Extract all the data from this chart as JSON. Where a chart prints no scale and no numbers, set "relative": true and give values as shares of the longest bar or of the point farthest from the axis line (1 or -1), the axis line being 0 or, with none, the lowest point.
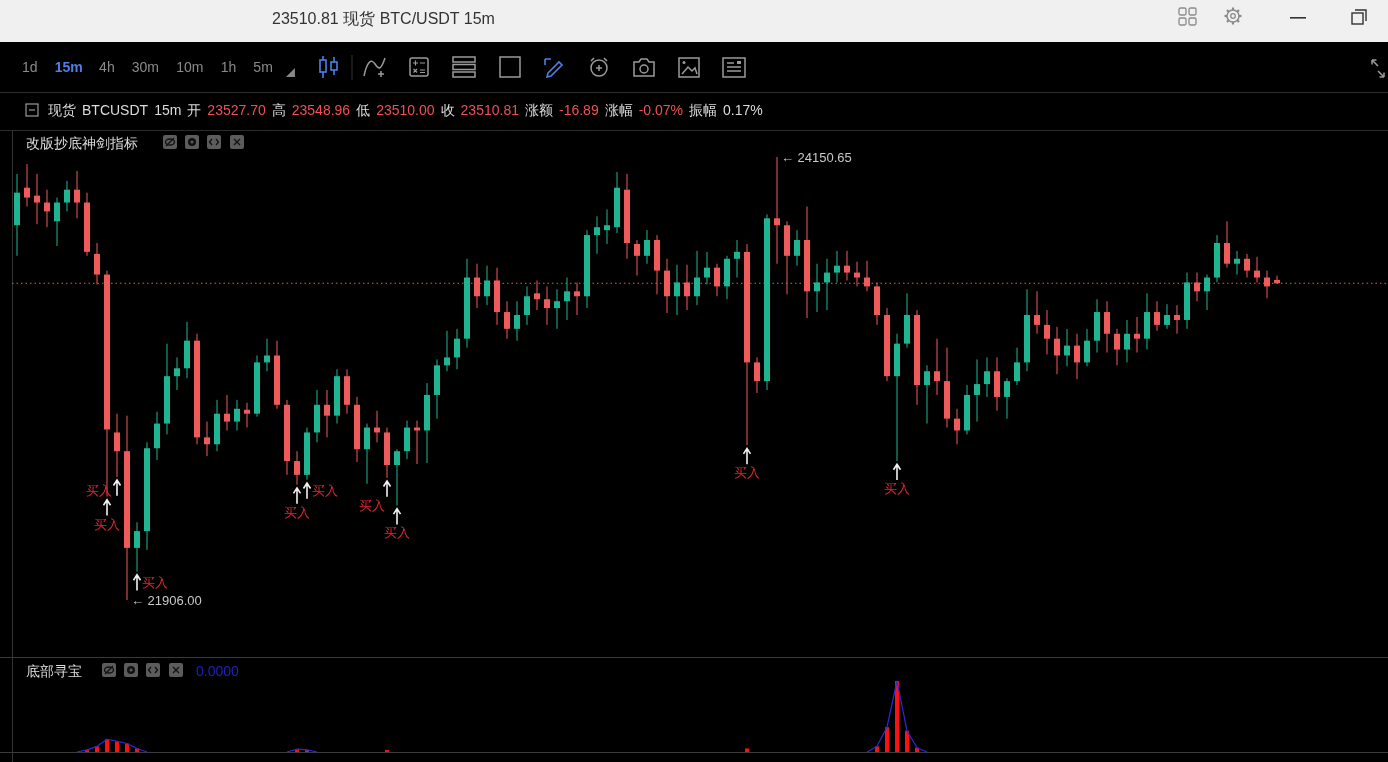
{
  "chart_data": [
    {
      "type": "other",
      "title": "23510.81 现货 BTC/USDT 15m",
      "annotations": [
        "1d",
        "15m",
        "4h",
        "30m",
        "10m",
        "1h",
        "5m"
      ]
    },
    {
      "type": "candlestick",
      "title": "现货 BTCUSDT 15m 开 23527.70 高 23548.96 低 23510.00 收 23510.81 涨额 -16.89 涨幅 -0.07% 振幅 0.17%",
      "subtitle": "改版抄底神剑指标",
      "categories": [
        null,
        null,
        null,
        null,
        null,
        null,
        null,
        null,
        null,
        null,
        null,
        null,
        null,
        null,
        null,
        null,
        null,
        null,
        null,
        null,
        null,
        null,
        null,
        null,
        null,
        null,
        null,
        null,
        null,
        null,
        null,
        null,
        null,
        null,
        null,
        null,
        null,
        null,
        null,
        null,
        null,
        null,
        null,
        null,
        null,
        null,
        null,
        null,
        null,
        null,
        null,
        null,
        null,
        null,
        null,
        null,
        null,
        null,
        null,
        null,
        null,
        null,
        null,
        null,
        null,
        null,
        null,
        null,
        null,
        null,
        null,
        null,
        null,
        null,
        null,
        null,
        null,
        null,
        null,
        null,
        null,
        null,
        null,
        null,
        null,
        null,
        null,
        null,
        null,
        null,
        null,
        null,
        null,
        null,
        null,
        null,
        null,
        null,
        null,
        null,
        null,
        null,
        null,
        null,
        null,
        null,
        null,
        null,
        null,
        null,
        null,
        null,
        null,
        null,
        null,
        null,
        null,
        null,
        null,
        null,
        null,
        null,
        null,
        null,
        null,
        null,
        null
      ],
      "ohlc": [
        [
          23805,
          24065,
          23650,
          23970
        ],
        [
          23995,
          24115,
          23900,
          23945
        ],
        [
          23955,
          24065,
          23810,
          23920
        ],
        [
          23920,
          23985,
          23795,
          23875
        ],
        [
          23825,
          23945,
          23700,
          23920
        ],
        [
          23920,
          24030,
          23875,
          23985
        ],
        [
          23985,
          24080,
          23840,
          23920
        ],
        [
          23920,
          23970,
          23650,
          23670
        ],
        [
          23660,
          23715,
          23505,
          23555
        ],
        [
          23555,
          23575,
          22430,
          22770
        ],
        [
          22755,
          22850,
          22530,
          22660
        ],
        [
          22660,
          22840,
          21906.0,
          22170
        ],
        [
          22170,
          22300,
          22050,
          22255
        ],
        [
          22255,
          22705,
          22160,
          22675
        ],
        [
          22675,
          22860,
          22615,
          22800
        ],
        [
          22800,
          23205,
          22745,
          23040
        ],
        [
          23040,
          23135,
          22970,
          23080
        ],
        [
          23080,
          23315,
          23030,
          23220
        ],
        [
          23220,
          23255,
          22695,
          22730
        ],
        [
          22730,
          22810,
          22635,
          22695
        ],
        [
          22695,
          22920,
          22660,
          22850
        ],
        [
          22850,
          22945,
          22765,
          22810
        ],
        [
          22810,
          22920,
          22765,
          22875
        ],
        [
          22870,
          22905,
          22780,
          22850
        ],
        [
          22850,
          23145,
          22835,
          23110
        ],
        [
          23110,
          23230,
          23065,
          23145
        ],
        [
          23145,
          23220,
          22875,
          22895
        ],
        [
          22895,
          22920,
          22540,
          22610
        ],
        [
          22610,
          22660,
          22490,
          22540
        ],
        [
          22540,
          22780,
          22515,
          22755
        ],
        [
          22755,
          22970,
          22705,
          22895
        ],
        [
          22895,
          22970,
          22730,
          22840
        ],
        [
          22840,
          23075,
          22800,
          23040
        ],
        [
          23040,
          23075,
          22850,
          22895
        ],
        [
          22895,
          22935,
          22605,
          22670
        ],
        [
          22670,
          22800,
          22495,
          22780
        ],
        [
          22780,
          22865,
          22705,
          22755
        ],
        [
          22755,
          22780,
          22525,
          22590
        ],
        [
          22590,
          22670,
          22385,
          22660
        ],
        [
          22660,
          22815,
          22620,
          22780
        ],
        [
          22780,
          22815,
          22595,
          22765
        ],
        [
          22765,
          23005,
          22600,
          22945
        ],
        [
          22945,
          23125,
          22825,
          23095
        ],
        [
          23095,
          23270,
          23065,
          23135
        ],
        [
          23135,
          23280,
          23075,
          23230
        ],
        [
          23230,
          23635,
          23185,
          23540
        ],
        [
          23540,
          23610,
          23385,
          23445
        ],
        [
          23445,
          23600,
          23400,
          23525
        ],
        [
          23525,
          23590,
          23300,
          23365
        ],
        [
          23365,
          23420,
          23230,
          23280
        ],
        [
          23280,
          23420,
          23220,
          23350
        ],
        [
          23350,
          23495,
          23300,
          23445
        ],
        [
          23460,
          23525,
          23375,
          23430
        ],
        [
          23430,
          23495,
          23300,
          23385
        ],
        [
          23385,
          23480,
          23280,
          23420
        ],
        [
          23420,
          23540,
          23325,
          23470
        ],
        [
          23470,
          23515,
          23350,
          23445
        ],
        [
          23445,
          23780,
          23385,
          23755
        ],
        [
          23755,
          23850,
          23660,
          23795
        ],
        [
          23780,
          23885,
          23710,
          23805
        ],
        [
          23795,
          24075,
          23765,
          23995
        ],
        [
          23985,
          24065,
          23635,
          23715
        ],
        [
          23710,
          23730,
          23550,
          23650
        ],
        [
          23650,
          23780,
          23610,
          23730
        ],
        [
          23730,
          23755,
          23455,
          23575
        ],
        [
          23575,
          23635,
          23360,
          23445
        ],
        [
          23445,
          23605,
          23350,
          23515
        ],
        [
          23515,
          23605,
          23375,
          23445
        ],
        [
          23445,
          23675,
          23400,
          23540
        ],
        [
          23540,
          23670,
          23505,
          23590
        ],
        [
          23590,
          23610,
          23445,
          23495
        ],
        [
          23495,
          23650,
          23430,
          23635
        ],
        [
          23635,
          23730,
          23540,
          23670
        ],
        [
          23670,
          23710,
          22690,
          23110
        ],
        [
          23110,
          23135,
          22955,
          23015
        ],
        [
          23015,
          23860,
          22970,
          23840
        ],
        [
          23840,
          24150.65,
          23610,
          23805
        ],
        [
          23805,
          23825,
          23455,
          23650
        ],
        [
          23650,
          23780,
          23600,
          23730
        ],
        [
          23730,
          23900,
          23335,
          23470
        ],
        [
          23470,
          23610,
          23365,
          23515
        ],
        [
          23515,
          23635,
          23375,
          23565
        ],
        [
          23565,
          23675,
          23515,
          23600
        ],
        [
          23600,
          23675,
          23525,
          23565
        ],
        [
          23565,
          23620,
          23495,
          23540
        ],
        [
          23540,
          23625,
          23470,
          23495
        ],
        [
          23495,
          23515,
          23300,
          23350
        ],
        [
          23350,
          23385,
          23015,
          23040
        ],
        [
          23040,
          23255,
          22610,
          23205
        ],
        [
          23205,
          23460,
          23185,
          23350
        ],
        [
          23350,
          23375,
          22895,
          22995
        ],
        [
          22995,
          23095,
          22800,
          23065
        ],
        [
          23065,
          23230,
          22945,
          23015
        ],
        [
          23015,
          23185,
          22780,
          22825
        ],
        [
          22825,
          22875,
          22695,
          22765
        ],
        [
          22765,
          22995,
          22745,
          22945
        ],
        [
          22945,
          23125,
          22810,
          23000
        ],
        [
          23000,
          23135,
          22935,
          23065
        ],
        [
          23065,
          23135,
          22865,
          22935
        ],
        [
          22935,
          23030,
          22825,
          23015
        ],
        [
          23015,
          23185,
          22995,
          23110
        ],
        [
          23110,
          23480,
          23065,
          23350
        ],
        [
          23350,
          23470,
          23255,
          23300
        ],
        [
          23300,
          23375,
          23150,
          23230
        ],
        [
          23230,
          23290,
          23050,
          23145
        ],
        [
          23145,
          23280,
          23090,
          23195
        ],
        [
          23195,
          23255,
          23025,
          23110
        ],
        [
          23110,
          23280,
          23090,
          23220
        ],
        [
          23220,
          23430,
          23160,
          23365
        ],
        [
          23365,
          23420,
          23160,
          23255
        ],
        [
          23255,
          23280,
          23095,
          23175
        ],
        [
          23175,
          23325,
          23110,
          23255
        ],
        [
          23255,
          23340,
          23160,
          23230
        ],
        [
          23230,
          23460,
          23175,
          23365
        ],
        [
          23365,
          23420,
          23270,
          23300
        ],
        [
          23300,
          23405,
          23280,
          23350
        ],
        [
          23350,
          23400,
          23255,
          23325
        ],
        [
          23325,
          23565,
          23280,
          23515
        ],
        [
          23515,
          23565,
          23420,
          23470
        ],
        [
          23470,
          23555,
          23375,
          23540
        ],
        [
          23540,
          23755,
          23515,
          23715
        ],
        [
          23715,
          23825,
          23590,
          23610
        ],
        [
          23610,
          23675,
          23555,
          23635
        ],
        [
          23635,
          23660,
          23540,
          23575
        ],
        [
          23575,
          23645,
          23515,
          23540
        ],
        [
          23540,
          23575,
          23435,
          23495
        ],
        [
          23527.7,
          23548.96,
          23510.0,
          23510.81
        ]
      ],
      "series": [
        {
          "type": "scatter",
          "color": "#f2f2f2",
          "values": [
            null,
            null,
            null,
            null,
            null,
            null,
            null,
            null,
            null,
            22400,
            22500,
            null,
            22020,
            null,
            null,
            null,
            null,
            null,
            null,
            null,
            null,
            null,
            null,
            null,
            null,
            null,
            null,
            null,
            22460,
            22485,
            null,
            null,
            null,
            null,
            null,
            null,
            null,
            22495,
            22355,
            null,
            null,
            null,
            null,
            null,
            null,
            null,
            null,
            null,
            null,
            null,
            null,
            null,
            null,
            null,
            null,
            null,
            null,
            null,
            null,
            null,
            null,
            null,
            null,
            null,
            null,
            null,
            null,
            null,
            null,
            null,
            null,
            null,
            null,
            22660,
            null,
            null,
            null,
            null,
            null,
            null,
            null,
            null,
            null,
            null,
            null,
            null,
            null,
            null,
            22580,
            null,
            null,
            null,
            null,
            null,
            null,
            null,
            null,
            null,
            null,
            null,
            null,
            null,
            null,
            null,
            null,
            null,
            null,
            null,
            null,
            null,
            null,
            null,
            null,
            null,
            null,
            null,
            null,
            null,
            null,
            null,
            null,
            null,
            null,
            null,
            null,
            null,
            null
          ],
          "value_labels": [
            null,
            null,
            null,
            null,
            null,
            null,
            null,
            null,
            null,
            "买入",
            "买入",
            null,
            "买入",
            null,
            null,
            null,
            null,
            null,
            null,
            null,
            null,
            null,
            null,
            null,
            null,
            null,
            null,
            null,
            "买入",
            "买入",
            null,
            null,
            null,
            null,
            null,
            null,
            null,
            "买入",
            "买入",
            null,
            null,
            null,
            null,
            null,
            null,
            null,
            null,
            null,
            null,
            null,
            null,
            null,
            null,
            null,
            null,
            null,
            null,
            null,
            null,
            null,
            null,
            null,
            null,
            null,
            null,
            null,
            null,
            null,
            null,
            null,
            null,
            null,
            null,
            "买入",
            null,
            null,
            null,
            null,
            null,
            null,
            null,
            null,
            null,
            null,
            null,
            null,
            null,
            null,
            "买入",
            null,
            null,
            null,
            null,
            null,
            null,
            null,
            null,
            null,
            null,
            null,
            null,
            null,
            null,
            null,
            null,
            null,
            null,
            null,
            null,
            null,
            null,
            null,
            null,
            null,
            null,
            null,
            null,
            null,
            null,
            null,
            null,
            null,
            null,
            null,
            null,
            null,
            null
          ]
        }
      ],
      "ref_lines": [
        {
          "axis": "y",
          "value": 23510.81,
          "color": "#e0603c",
          "line_style": "dotted"
        }
      ],
      "annotations": [
        "← 24150.65",
        "← 21906.00"
      ]
    },
    {
      "type": "bar",
      "title": "底部寻宝",
      "subtitle": "0.0000",
      "relative": true,
      "categories": [
        null,
        null,
        null,
        null,
        null,
        null,
        null,
        null,
        null,
        null,
        null,
        null,
        null,
        null,
        null,
        null,
        null,
        null,
        null,
        null,
        null,
        null,
        null,
        null,
        null,
        null,
        null,
        null,
        null,
        null,
        null,
        null,
        null,
        null,
        null,
        null,
        null,
        null,
        null,
        null,
        null,
        null,
        null,
        null,
        null,
        null,
        null,
        null,
        null,
        null,
        null,
        null,
        null,
        null,
        null,
        null,
        null,
        null,
        null,
        null,
        null,
        null,
        null,
        null,
        null,
        null,
        null,
        null,
        null,
        null,
        null,
        null,
        null,
        null,
        null,
        null,
        null,
        null,
        null,
        null,
        null,
        null,
        null,
        null,
        null,
        null,
        null,
        null,
        null,
        null,
        null,
        null,
        null,
        null,
        null,
        null,
        null,
        null,
        null,
        null,
        null,
        null,
        null,
        null,
        null,
        null,
        null,
        null,
        null,
        null,
        null,
        null,
        null,
        null,
        null,
        null,
        null,
        null,
        null,
        null,
        null,
        null,
        null,
        null,
        null,
        null,
        null
      ],
      "series": [
        {
          "type": "bar",
          "color": "#ff1010",
          "values": [
            null,
            null,
            null,
            null,
            null,
            null,
            null,
            0.03,
            0.08,
            0.18,
            0.15,
            0.12,
            0.05,
            null,
            null,
            null,
            null,
            null,
            null,
            null,
            null,
            null,
            null,
            null,
            null,
            null,
            null,
            null,
            0.04,
            0.03,
            null,
            null,
            null,
            null,
            null,
            null,
            null,
            0.03,
            null,
            null,
            null,
            null,
            null,
            null,
            null,
            null,
            null,
            null,
            null,
            null,
            null,
            null,
            null,
            null,
            null,
            null,
            null,
            null,
            null,
            null,
            null,
            null,
            null,
            null,
            null,
            null,
            null,
            null,
            null,
            null,
            null,
            null,
            null,
            0.05,
            null,
            null,
            null,
            null,
            null,
            null,
            null,
            null,
            null,
            null,
            null,
            null,
            0.08,
            0.35,
            1,
            0.3,
            0.06,
            null,
            null,
            null,
            null,
            null,
            null,
            null,
            null,
            null,
            null,
            null,
            null,
            null,
            null,
            null,
            null,
            null,
            null,
            null,
            null,
            null,
            null,
            null,
            null,
            null,
            null,
            null,
            null,
            null,
            null,
            null,
            null,
            null,
            null,
            null,
            null
          ]
        },
        {
          "type": "line",
          "color": "#2b2bd8",
          "values": [
            null,
            null,
            null,
            null,
            null,
            null,
            0,
            0.03,
            0.08,
            0.18,
            0.15,
            0.12,
            0.05,
            0,
            null,
            null,
            null,
            null,
            null,
            null,
            null,
            null,
            null,
            null,
            null,
            null,
            null,
            0,
            0.04,
            0.03,
            0,
            null,
            null,
            null,
            null,
            null,
            null,
            null,
            null,
            null,
            null,
            null,
            null,
            null,
            null,
            null,
            null,
            null,
            null,
            null,
            null,
            null,
            null,
            null,
            null,
            null,
            null,
            null,
            null,
            null,
            null,
            null,
            null,
            null,
            null,
            null,
            null,
            null,
            null,
            null,
            null,
            null,
            null,
            null,
            null,
            null,
            null,
            null,
            null,
            null,
            null,
            null,
            null,
            null,
            null,
            0,
            0.08,
            0.35,
            1,
            0.3,
            0.06,
            0,
            null,
            null,
            null,
            null,
            null,
            null,
            null,
            null,
            null,
            null,
            null,
            null,
            null,
            null,
            null,
            null,
            null,
            null,
            null,
            null,
            null,
            null,
            null,
            null,
            null,
            null,
            null,
            null,
            null,
            null,
            null,
            null,
            null,
            null,
            null
          ]
        }
      ]
    }
  ]
}
